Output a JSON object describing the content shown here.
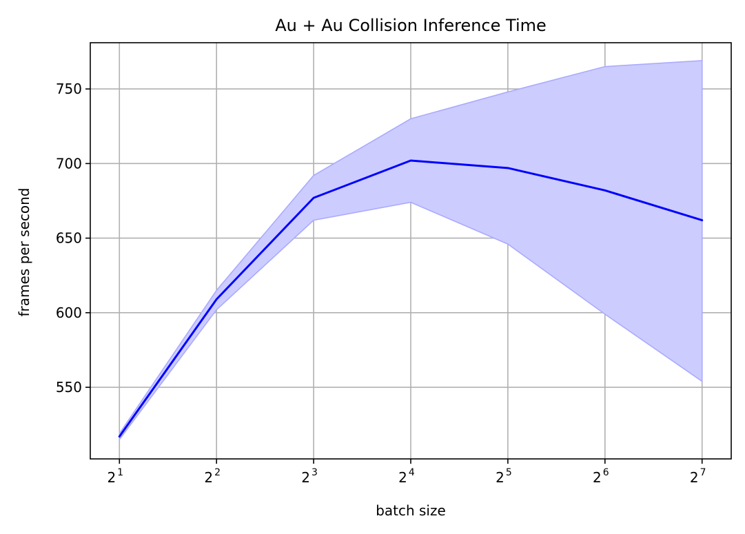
{
  "chart_data": {
    "type": "area",
    "title": "Au + Au Collision Inference Time",
    "xlabel": "batch size",
    "ylabel": "frames per second",
    "x_scale": "log2",
    "x": [
      2,
      4,
      8,
      16,
      32,
      64,
      128
    ],
    "x_tick_labels": [
      {
        "base": "2",
        "exp": "1"
      },
      {
        "base": "2",
        "exp": "2"
      },
      {
        "base": "2",
        "exp": "3"
      },
      {
        "base": "2",
        "exp": "4"
      },
      {
        "base": "2",
        "exp": "5"
      },
      {
        "base": "2",
        "exp": "6"
      },
      {
        "base": "2",
        "exp": "7"
      }
    ],
    "y_ticks": [
      550,
      600,
      650,
      700,
      750
    ],
    "ylim": [
      502,
      781
    ],
    "grid": true,
    "series": [
      {
        "values": [
          517,
          609,
          677,
          702,
          697,
          682,
          662
        ],
        "upper": [
          519,
          615,
          692,
          730,
          748,
          765,
          769
        ],
        "lower": [
          515,
          602,
          662,
          674,
          646,
          599,
          554
        ],
        "line_color": "#0000ff",
        "fill_color": "#ccccff",
        "fill_edge_color": "#aaaaff"
      }
    ]
  }
}
